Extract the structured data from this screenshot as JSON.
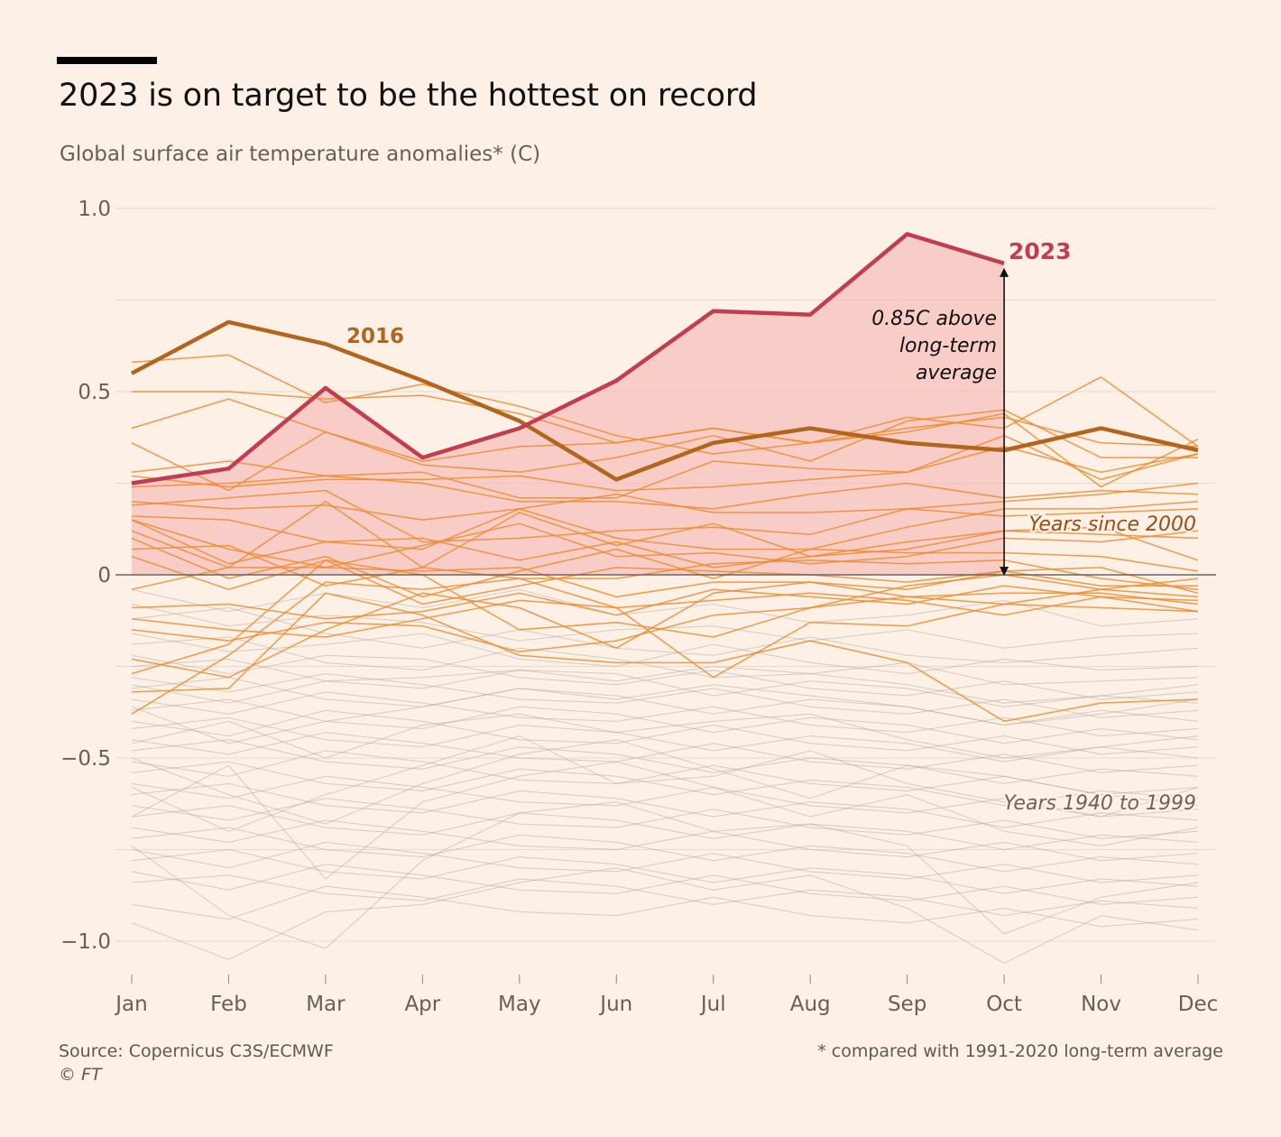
{
  "header": {
    "title": "2023 is on target to be the hottest on record",
    "subtitle": "Global surface air temperature anomalies* (C)"
  },
  "footer": {
    "source": "Source: Copernicus C3S/ECMWF",
    "copyright": "© FT",
    "footnote": "* compared with 1991-2020 long-term average"
  },
  "colors": {
    "background": "#fdf1e7",
    "y2023": "#c33d50",
    "y2023_fill": "#f6bdb9",
    "y2016": "#b2651c",
    "since2000": "#ee8a2a",
    "before2000": "#b3aba2",
    "gridline": "#e6dbd1",
    "axis_text": "#66605b"
  },
  "chart_data": {
    "type": "line",
    "title": "2023 is on target to be the hottest on record",
    "ylabel": "Global surface air temperature anomalies* (C)",
    "xlabel": "",
    "categories": [
      "Jan",
      "Feb",
      "Mar",
      "Apr",
      "May",
      "Jun",
      "Jul",
      "Aug",
      "Sep",
      "Oct",
      "Nov",
      "Dec"
    ],
    "ylim": [
      -1.08,
      1.0
    ],
    "yticks": [
      1.0,
      0.5,
      0,
      -0.5,
      -1.0
    ],
    "ytick_labels": [
      "1.0",
      "0.5",
      "0",
      "−0.5",
      "−1.0"
    ],
    "grid": true,
    "highlight_series": [
      {
        "name": "2023",
        "values": [
          0.25,
          0.29,
          0.51,
          0.32,
          0.4,
          0.53,
          0.72,
          0.71,
          0.93,
          0.85
        ]
      },
      {
        "name": "2016",
        "values": [
          0.55,
          0.69,
          0.63,
          0.53,
          0.42,
          0.26,
          0.36,
          0.4,
          0.36,
          0.34,
          0.4,
          0.34
        ]
      }
    ],
    "annotations": {
      "label_2023": "2023",
      "label_2016": "2016",
      "anomaly_lines": [
        "0.85C above",
        "long-term",
        "average"
      ],
      "anomaly_value": 0.85,
      "since_2000": "Years since 2000",
      "years_1940_1999": "Years 1940 to 1999"
    },
    "series_since_2000": [
      {
        "name": "since-2000-01",
        "values": [
          0.58,
          0.6,
          0.47,
          0.52,
          0.46,
          0.38,
          0.33,
          0.36,
          0.4,
          0.43,
          0.36,
          0.35
        ]
      },
      {
        "name": "since-2000-02",
        "values": [
          0.5,
          0.5,
          0.48,
          0.49,
          0.44,
          0.36,
          0.4,
          0.36,
          0.43,
          0.4,
          0.54,
          0.35
        ]
      },
      {
        "name": "since-2000-03",
        "values": [
          0.4,
          0.48,
          0.39,
          0.3,
          0.28,
          0.32,
          0.38,
          0.31,
          0.42,
          0.45,
          0.32,
          0.32
        ]
      },
      {
        "name": "since-2000-04",
        "values": [
          0.36,
          0.23,
          0.39,
          0.31,
          0.35,
          0.36,
          0.4,
          0.36,
          0.39,
          0.44,
          0.24,
          0.37
        ]
      },
      {
        "name": "since-2000-05",
        "values": [
          0.28,
          0.31,
          0.27,
          0.28,
          0.21,
          0.21,
          0.31,
          0.29,
          0.28,
          0.38,
          0.26,
          0.33
        ]
      },
      {
        "name": "since-2000-06",
        "values": [
          0.27,
          0.24,
          0.26,
          0.26,
          0.27,
          0.23,
          0.24,
          0.26,
          0.28,
          0.35,
          0.28,
          0.33
        ]
      },
      {
        "name": "since-2000-07",
        "values": [
          0.24,
          0.25,
          0.27,
          0.25,
          0.2,
          0.2,
          0.18,
          0.22,
          0.25,
          0.21,
          0.23,
          0.22
        ]
      },
      {
        "name": "since-2000-08",
        "values": [
          0.2,
          0.18,
          0.19,
          0.15,
          0.18,
          0.22,
          0.17,
          0.17,
          0.18,
          0.2,
          0.22,
          0.25
        ]
      },
      {
        "name": "since-2000-09",
        "values": [
          0.19,
          0.21,
          0.23,
          0.09,
          0.1,
          0.12,
          0.13,
          0.11,
          0.18,
          0.16,
          0.17,
          0.18
        ]
      },
      {
        "name": "since-2000-10",
        "values": [
          0.16,
          0.15,
          0.09,
          0.07,
          0.18,
          0.1,
          0.07,
          0.07,
          0.13,
          0.18,
          0.18,
          0.2
        ]
      },
      {
        "name": "since-2000-11",
        "values": [
          0.15,
          0.07,
          0.02,
          0.08,
          0.14,
          0.05,
          0.06,
          0.03,
          0.05,
          0.1,
          0.09,
          0.12
        ]
      },
      {
        "name": "since-2000-12",
        "values": [
          0.15,
          0.03,
          0.09,
          0.1,
          0.04,
          0.09,
          0.02,
          0.05,
          0.09,
          0.12,
          0.11,
          0.1
        ]
      },
      {
        "name": "since-2000-13",
        "values": [
          0.12,
          0.02,
          0.2,
          0.02,
          0.17,
          0.08,
          0.14,
          0.05,
          0.07,
          0.12,
          0.13,
          0.04
        ]
      },
      {
        "name": "since-2000-14",
        "values": [
          0.1,
          -0.01,
          0.05,
          -0.06,
          0.01,
          0.07,
          -0.01,
          0.07,
          0.06,
          0.06,
          0.05,
          0.01
        ]
      },
      {
        "name": "since-2000-15",
        "values": [
          0.07,
          0.08,
          -0.03,
          0.02,
          -0.01,
          -0.01,
          0.03,
          0.04,
          0.03,
          0.04,
          -0.01,
          -0.04
        ]
      },
      {
        "name": "since-2000-16",
        "values": [
          0.05,
          -0.04,
          0.04,
          -0.08,
          -0.03,
          0.02,
          0.01,
          0.0,
          -0.02,
          0.01,
          0.02,
          -0.05
        ]
      },
      {
        "name": "since-2000-17",
        "values": [
          -0.04,
          0.02,
          0.02,
          0.01,
          0.02,
          -0.06,
          -0.02,
          -0.02,
          -0.06,
          -0.05,
          -0.05,
          -0.08
        ]
      },
      {
        "name": "since-2000-18",
        "values": [
          -0.09,
          -0.08,
          -0.12,
          -0.1,
          -0.05,
          -0.11,
          -0.04,
          -0.06,
          -0.08,
          -0.03,
          -0.06,
          -0.07
        ]
      },
      {
        "name": "since-2000-19",
        "values": [
          -0.12,
          -0.15,
          -0.17,
          -0.12,
          -0.07,
          -0.09,
          -0.07,
          -0.05,
          -0.07,
          -0.11,
          -0.06,
          -0.1
        ]
      },
      {
        "name": "since-2000-20",
        "values": [
          -0.15,
          -0.18,
          -0.13,
          -0.14,
          -0.21,
          -0.18,
          -0.11,
          -0.09,
          -0.06,
          -0.08,
          -0.04,
          -0.06
        ]
      },
      {
        "name": "since-2000-21",
        "values": [
          -0.23,
          -0.28,
          -0.15,
          -0.05,
          -0.09,
          -0.2,
          -0.05,
          -0.02,
          -0.04,
          0.01,
          -0.03,
          -0.03
        ]
      },
      {
        "name": "since-2000-22",
        "values": [
          -0.27,
          -0.19,
          0.04,
          0.0,
          -0.15,
          -0.13,
          -0.17,
          -0.09,
          -0.03,
          0.0,
          -0.04,
          -0.01
        ]
      },
      {
        "name": "since-2000-23",
        "values": [
          -0.32,
          -0.31,
          -0.05,
          -0.11,
          -0.22,
          -0.24,
          -0.24,
          -0.18,
          -0.24,
          -0.4,
          -0.35,
          -0.34
        ]
      },
      {
        "name": "since-2000-24",
        "values": [
          -0.38,
          -0.22,
          -0.02,
          -0.04,
          -0.01,
          -0.09,
          -0.28,
          -0.13,
          -0.14,
          -0.08,
          -0.09,
          -0.1
        ]
      }
    ],
    "series_1940_1999": [
      {
        "name": "y1940-1999-01",
        "values": [
          -0.04,
          -0.1,
          -0.05,
          -0.09,
          -0.04,
          -0.11,
          -0.08,
          -0.13,
          -0.11,
          -0.07,
          -0.14,
          -0.12
        ]
      },
      {
        "name": "y1940-1999-02",
        "values": [
          -0.08,
          -0.14,
          -0.11,
          -0.13,
          -0.18,
          -0.15,
          -0.14,
          -0.18,
          -0.15,
          -0.2,
          -0.17,
          -0.16
        ]
      },
      {
        "name": "y1940-1999-03",
        "values": [
          -0.12,
          -0.09,
          -0.16,
          -0.2,
          -0.15,
          -0.2,
          -0.22,
          -0.17,
          -0.22,
          -0.24,
          -0.22,
          -0.2
        ]
      },
      {
        "name": "y1940-1999-04",
        "values": [
          -0.16,
          -0.21,
          -0.19,
          -0.16,
          -0.23,
          -0.25,
          -0.19,
          -0.24,
          -0.27,
          -0.23,
          -0.26,
          -0.25
        ]
      },
      {
        "name": "y1940-1999-05",
        "values": [
          -0.19,
          -0.17,
          -0.24,
          -0.26,
          -0.2,
          -0.23,
          -0.28,
          -0.27,
          -0.24,
          -0.3,
          -0.29,
          -0.28
        ]
      },
      {
        "name": "y1940-1999-06",
        "values": [
          -0.22,
          -0.27,
          -0.22,
          -0.23,
          -0.28,
          -0.3,
          -0.26,
          -0.31,
          -0.33,
          -0.29,
          -0.34,
          -0.32
        ]
      },
      {
        "name": "y1940-1999-07",
        "values": [
          -0.25,
          -0.23,
          -0.29,
          -0.31,
          -0.26,
          -0.27,
          -0.33,
          -0.29,
          -0.31,
          -0.36,
          -0.33,
          -0.35
        ]
      },
      {
        "name": "y1940-1999-08",
        "values": [
          -0.28,
          -0.32,
          -0.27,
          -0.3,
          -0.34,
          -0.35,
          -0.31,
          -0.36,
          -0.38,
          -0.34,
          -0.39,
          -0.37
        ]
      },
      {
        "name": "y1940-1999-09",
        "values": [
          -0.31,
          -0.28,
          -0.34,
          -0.36,
          -0.31,
          -0.33,
          -0.38,
          -0.34,
          -0.36,
          -0.41,
          -0.37,
          -0.4
        ]
      },
      {
        "name": "y1940-1999-10",
        "values": [
          -0.34,
          -0.38,
          -0.32,
          -0.35,
          -0.39,
          -0.4,
          -0.36,
          -0.41,
          -0.43,
          -0.39,
          -0.44,
          -0.42
        ]
      },
      {
        "name": "y1940-1999-11",
        "values": [
          -0.37,
          -0.34,
          -0.4,
          -0.42,
          -0.36,
          -0.38,
          -0.43,
          -0.39,
          -0.41,
          -0.46,
          -0.42,
          -0.45
        ]
      },
      {
        "name": "y1940-1999-12",
        "values": [
          -0.4,
          -0.44,
          -0.37,
          -0.4,
          -0.45,
          -0.46,
          -0.41,
          -0.46,
          -0.48,
          -0.44,
          -0.49,
          -0.47
        ]
      },
      {
        "name": "y1940-1999-13",
        "values": [
          -0.42,
          -0.39,
          -0.45,
          -0.47,
          -0.41,
          -0.43,
          -0.48,
          -0.44,
          -0.46,
          -0.51,
          -0.47,
          -0.5
        ]
      },
      {
        "name": "y1940-1999-14",
        "values": [
          -0.45,
          -0.49,
          -0.43,
          -0.46,
          -0.5,
          -0.51,
          -0.46,
          -0.51,
          -0.53,
          -0.49,
          -0.54,
          -0.52
        ]
      },
      {
        "name": "y1940-1999-15",
        "values": [
          -0.48,
          -0.45,
          -0.51,
          -0.53,
          -0.47,
          -0.49,
          -0.54,
          -0.5,
          -0.52,
          -0.57,
          -0.53,
          -0.55
        ]
      },
      {
        "name": "y1940-1999-16",
        "values": [
          -0.51,
          -0.55,
          -0.48,
          -0.51,
          -0.56,
          -0.57,
          -0.52,
          -0.57,
          -0.59,
          -0.55,
          -0.6,
          -0.58
        ]
      },
      {
        "name": "y1940-1999-17",
        "values": [
          -0.54,
          -0.51,
          -0.57,
          -0.59,
          -0.53,
          -0.55,
          -0.6,
          -0.56,
          -0.58,
          -0.63,
          -0.59,
          -0.61
        ]
      },
      {
        "name": "y1940-1999-18",
        "values": [
          -0.57,
          -0.61,
          -0.55,
          -0.58,
          -0.62,
          -0.63,
          -0.58,
          -0.63,
          -0.65,
          -0.61,
          -0.66,
          -0.64
        ]
      },
      {
        "name": "y1940-1999-19",
        "values": [
          -0.6,
          -0.57,
          -0.63,
          -0.65,
          -0.59,
          -0.61,
          -0.66,
          -0.62,
          -0.64,
          -0.69,
          -0.65,
          -0.67
        ]
      },
      {
        "name": "y1940-1999-20",
        "values": [
          -0.63,
          -0.67,
          -0.61,
          -0.64,
          -0.68,
          -0.69,
          -0.64,
          -0.69,
          -0.71,
          -0.67,
          -0.72,
          -0.7
        ]
      },
      {
        "name": "y1940-1999-21",
        "values": [
          -0.66,
          -0.63,
          -0.69,
          -0.71,
          -0.65,
          -0.67,
          -0.72,
          -0.68,
          -0.7,
          -0.75,
          -0.71,
          -0.73
        ]
      },
      {
        "name": "y1940-1999-22",
        "values": [
          -0.69,
          -0.73,
          -0.67,
          -0.7,
          -0.74,
          -0.75,
          -0.7,
          -0.75,
          -0.77,
          -0.73,
          -0.78,
          -0.76
        ]
      },
      {
        "name": "y1940-1999-23",
        "values": [
          -0.72,
          -0.69,
          -0.75,
          -0.77,
          -0.71,
          -0.73,
          -0.78,
          -0.74,
          -0.76,
          -0.81,
          -0.77,
          -0.79
        ]
      },
      {
        "name": "y1940-1999-24",
        "values": [
          -0.75,
          -0.8,
          -0.73,
          -0.76,
          -0.8,
          -0.81,
          -0.76,
          -0.81,
          -0.83,
          -0.79,
          -0.84,
          -0.82
        ]
      },
      {
        "name": "y1940-1999-25",
        "values": [
          -0.78,
          -0.75,
          -0.81,
          -0.83,
          -0.77,
          -0.79,
          -0.84,
          -0.8,
          -0.82,
          -0.87,
          -0.83,
          -0.85
        ]
      },
      {
        "name": "y1940-1999-26",
        "values": [
          -0.81,
          -0.86,
          -0.79,
          -0.82,
          -0.86,
          -0.87,
          -0.82,
          -0.87,
          -0.89,
          -0.85,
          -0.9,
          -0.88
        ]
      },
      {
        "name": "y1940-1999-27",
        "values": [
          -0.84,
          -0.82,
          -0.87,
          -0.89,
          -0.83,
          -0.85,
          -0.9,
          -0.86,
          -0.88,
          -0.93,
          -0.89,
          -0.91
        ]
      },
      {
        "name": "y1940-1999-28",
        "values": [
          -0.9,
          -0.94,
          -0.85,
          -0.88,
          -0.92,
          -0.93,
          -0.88,
          -0.93,
          -0.95,
          -0.91,
          -0.96,
          -0.94
        ]
      },
      {
        "name": "y1940-1999-29",
        "values": [
          -0.95,
          -1.05,
          -0.92,
          -0.9,
          -0.84,
          -0.8,
          -0.86,
          -0.82,
          -0.91,
          -1.06,
          -0.93,
          -0.97
        ]
      },
      {
        "name": "y1940-1999-30",
        "values": [
          -0.74,
          -0.93,
          -1.02,
          -0.78,
          -0.65,
          -0.62,
          -0.7,
          -0.68,
          -0.74,
          -0.98,
          -0.88,
          -0.84
        ]
      },
      {
        "name": "y1940-1999-31",
        "values": [
          -0.66,
          -0.52,
          -0.83,
          -0.62,
          -0.55,
          -0.51,
          -0.58,
          -0.66,
          -0.6,
          -0.7,
          -0.74,
          -0.69
        ]
      },
      {
        "name": "y1940-1999-32",
        "values": [
          -0.58,
          -0.7,
          -0.6,
          -0.52,
          -0.44,
          -0.57,
          -0.55,
          -0.48,
          -0.57,
          -0.62,
          -0.66,
          -0.58
        ]
      },
      {
        "name": "y1940-1999-33",
        "values": [
          -0.5,
          -0.6,
          -0.68,
          -0.57,
          -0.49,
          -0.45,
          -0.53,
          -0.61,
          -0.52,
          -0.55,
          -0.6,
          -0.63
        ]
      },
      {
        "name": "y1940-1999-34",
        "values": [
          -0.46,
          -0.4,
          -0.5,
          -0.41,
          -0.38,
          -0.43,
          -0.4,
          -0.38,
          -0.45,
          -0.5,
          -0.47,
          -0.44
        ]
      },
      {
        "name": "y1940-1999-35",
        "values": [
          -0.36,
          -0.46,
          -0.4,
          -0.36,
          -0.31,
          -0.34,
          -0.3,
          -0.33,
          -0.36,
          -0.41,
          -0.38,
          -0.34
        ]
      },
      {
        "name": "y1940-1999-36",
        "values": [
          -0.3,
          -0.35,
          -0.29,
          -0.28,
          -0.26,
          -0.29,
          -0.25,
          -0.27,
          -0.3,
          -0.35,
          -0.33,
          -0.3
        ]
      }
    ]
  }
}
